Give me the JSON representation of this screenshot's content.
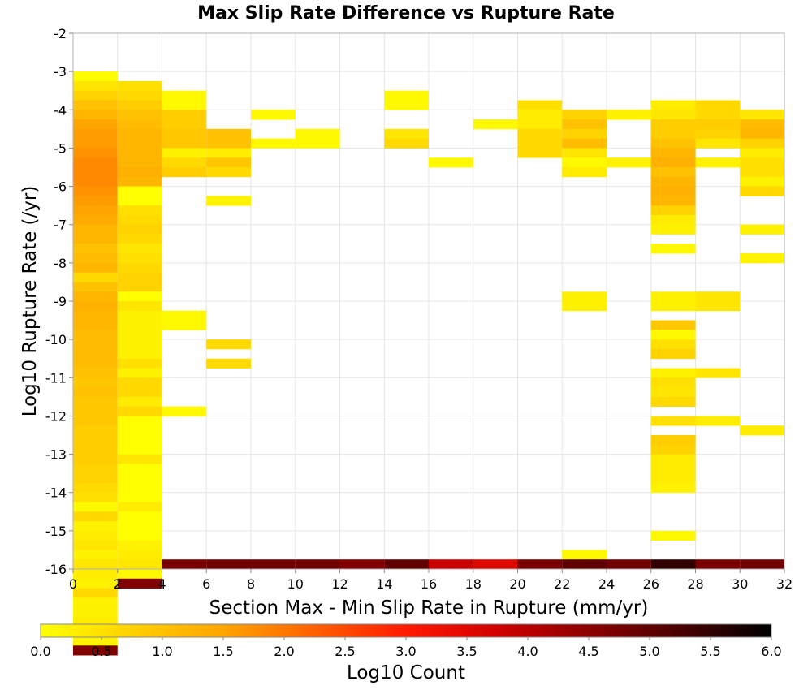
{
  "chart_data": {
    "type": "heatmap",
    "title": "Max Slip Rate Difference vs Rupture Rate",
    "xlabel": "Section Max - Min Slip Rate in Rupture (mm/yr)",
    "ylabel": "Log10 Rupture Rate (/yr)",
    "xlim": [
      0,
      32
    ],
    "ylim": [
      -16,
      -2
    ],
    "x_bin_width": 2,
    "y_bin_height": 0.25,
    "x_ticks": [
      "0",
      "2",
      "4",
      "6",
      "8",
      "10",
      "12",
      "14",
      "16",
      "18",
      "20",
      "22",
      "24",
      "26",
      "28",
      "30",
      "32"
    ],
    "y_ticks": [
      "-2",
      "-3",
      "-4",
      "-5",
      "-6",
      "-7",
      "-8",
      "-9",
      "-10",
      "-11",
      "-12",
      "-13",
      "-14",
      "-15",
      "-16"
    ],
    "grid": true,
    "colorbar": {
      "label": "Log10 Count",
      "range": [
        0,
        6
      ],
      "ticks": [
        "0.0",
        "0.5",
        "1.0",
        "1.5",
        "2.0",
        "2.5",
        "3.0",
        "3.5",
        "4.0",
        "4.5",
        "5.0",
        "5.5",
        "6.0"
      ],
      "stops": [
        "#ffff00",
        "#ffd000",
        "#ffa500",
        "#ff6000",
        "#ff1a00",
        "#d00000",
        "#8b0000",
        "#4a0000",
        "#000000"
      ]
    },
    "columns": [
      {
        "x": 1,
        "top": -3.0,
        "values": [
          0.05,
          0.4,
          0.7,
          1.0,
          1.2,
          1.5,
          1.6,
          1.6,
          1.7,
          1.8,
          1.8,
          1.8,
          1.7,
          1.6,
          1.5,
          1.4,
          1.2,
          1.2,
          1.0,
          1.1,
          1.2,
          0.6,
          1.0,
          1.2,
          1.3,
          1.2,
          1.2,
          1.1,
          1.1,
          1.1,
          1.1,
          1.0,
          0.9,
          1.0,
          0.9,
          0.9,
          0.9,
          0.8,
          0.8,
          0.8,
          0.8,
          0.7,
          0.7,
          0.6,
          0.5,
          0.1,
          0.6,
          0.2,
          0.3,
          0.4,
          0.2,
          0.4,
          0.3,
          0.2,
          0.6,
          0.2,
          0.2,
          0.3,
          0.1,
          0.2,
          4.6
        ]
      },
      {
        "x": 3,
        "top": -3.25,
        "values": [
          0.5,
          0.6,
          0.8,
          1.0,
          1.1,
          1.2,
          1.2,
          1.2,
          1.2,
          1.3,
          1.2,
          0.0,
          0.0,
          0.5,
          0.6,
          0.7,
          0.6,
          0.4,
          0.5,
          0.6,
          0.7,
          0.7,
          0.0,
          0.4,
          0.2,
          0.2,
          0.2,
          0.2,
          0.2,
          0.5,
          0.2,
          0.6,
          0.6,
          0.3,
          0.6,
          0.0,
          0.0,
          0.0,
          0.0,
          0.4,
          0.0,
          0.0,
          0.0,
          0.0,
          0.3,
          0.0,
          0.0,
          0.0,
          0.2,
          0.3,
          0.4,
          0.1,
          4.6
        ]
      },
      {
        "x": 5,
        "top": -3.5,
        "values": [
          0.1,
          0.1,
          0.8,
          0.8,
          0.9,
          0.9,
          0.2,
          0.6,
          0.8
        ]
      },
      {
        "x": 5,
        "top": -9.25,
        "values": [
          0.1,
          0.1
        ]
      },
      {
        "x": 5,
        "top": -11.75,
        "values": [
          0.1
        ]
      },
      {
        "x": 5,
        "top": -15.75,
        "values": [
          4.7
        ]
      },
      {
        "x": 7,
        "top": -4.5,
        "values": [
          1.0,
          1.0,
          0.3,
          0.9,
          0.6
        ]
      },
      {
        "x": 7,
        "top": -6.25,
        "values": [
          0.2
        ]
      },
      {
        "x": 7,
        "top": -10.0,
        "values": [
          0.6
        ]
      },
      {
        "x": 7,
        "top": -10.5,
        "values": [
          0.6
        ]
      },
      {
        "x": 7,
        "top": -15.75,
        "values": [
          4.8
        ]
      },
      {
        "x": 9,
        "top": -4.0,
        "values": [
          0.1
        ]
      },
      {
        "x": 9,
        "top": -4.75,
        "values": [
          0.1
        ]
      },
      {
        "x": 9,
        "top": -15.75,
        "values": [
          4.8
        ]
      },
      {
        "x": 11,
        "top": -4.5,
        "values": [
          0.1,
          0.1
        ]
      },
      {
        "x": 11,
        "top": -15.75,
        "values": [
          4.8
        ]
      },
      {
        "x": 13,
        "top": -15.75,
        "values": [
          4.6
        ]
      },
      {
        "x": 15,
        "top": -3.5,
        "values": [
          0.1,
          0.1
        ]
      },
      {
        "x": 15,
        "top": -4.5,
        "values": [
          0.4,
          0.6
        ]
      },
      {
        "x": 15,
        "top": -15.75,
        "values": [
          5.0
        ]
      },
      {
        "x": 17,
        "top": -5.25,
        "values": [
          0.1
        ]
      },
      {
        "x": 17,
        "top": -15.75,
        "values": [
          3.8
        ]
      },
      {
        "x": 19,
        "top": -4.25,
        "values": [
          0.1
        ]
      },
      {
        "x": 19,
        "top": -15.75,
        "values": [
          3.5
        ]
      },
      {
        "x": 21,
        "top": -3.75,
        "values": [
          0.5,
          0.3,
          0.3,
          0.6,
          0.6,
          0.6
        ]
      },
      {
        "x": 21,
        "top": -15.75,
        "values": [
          4.7
        ]
      },
      {
        "x": 23,
        "top": -4.0,
        "values": [
          0.7,
          1.0,
          0.7,
          1.1,
          0.4,
          0.1,
          0.3
        ]
      },
      {
        "x": 23,
        "top": -8.75,
        "values": [
          0.2,
          0.2
        ]
      },
      {
        "x": 23,
        "top": -15.5,
        "values": [
          0.1,
          5.0
        ]
      },
      {
        "x": 25,
        "top": -4.0,
        "values": [
          0.2
        ]
      },
      {
        "x": 25,
        "top": -5.25,
        "values": [
          0.2
        ]
      },
      {
        "x": 25,
        "top": -15.75,
        "values": [
          4.8
        ]
      },
      {
        "x": 27,
        "top": -3.75,
        "values": [
          0.3,
          0.4,
          0.8,
          0.8,
          1.0,
          1.2,
          1.3,
          1.0,
          1.2,
          1.3,
          1.2,
          0.7,
          0.3,
          0.2
        ]
      },
      {
        "x": 27,
        "top": -7.5,
        "values": [
          0.1
        ]
      },
      {
        "x": 27,
        "top": -8.75,
        "values": [
          0.2,
          0.2
        ]
      },
      {
        "x": 27,
        "top": -9.5,
        "values": [
          0.9,
          0.1,
          0.5,
          0.7
        ]
      },
      {
        "x": 27,
        "top": -10.75,
        "values": [
          0.2,
          0.5,
          0.4,
          0.6
        ]
      },
      {
        "x": 27,
        "top": -12.0,
        "values": [
          0.5
        ]
      },
      {
        "x": 27,
        "top": -12.5,
        "values": [
          0.8,
          0.7,
          0.3,
          0.3,
          0.3,
          0.2
        ]
      },
      {
        "x": 27,
        "top": -15.0,
        "values": [
          0.1
        ]
      },
      {
        "x": 27,
        "top": -15.75,
        "values": [
          5.5
        ]
      },
      {
        "x": 29,
        "top": -3.75,
        "values": [
          0.6,
          0.6,
          0.8,
          0.7,
          0.4
        ]
      },
      {
        "x": 29,
        "top": -5.25,
        "values": [
          0.2
        ]
      },
      {
        "x": 29,
        "top": -8.75,
        "values": [
          0.4,
          0.4
        ]
      },
      {
        "x": 29,
        "top": -10.75,
        "values": [
          0.4
        ]
      },
      {
        "x": 29,
        "top": -12.0,
        "values": [
          0.3
        ]
      },
      {
        "x": 29,
        "top": -15.75,
        "values": [
          4.7
        ]
      },
      {
        "x": 31,
        "top": -4.0,
        "values": [
          0.4,
          1.1,
          1.2,
          0.7,
          0.3,
          0.5,
          0.5,
          0.2,
          0.6
        ]
      },
      {
        "x": 31,
        "top": -7.0,
        "values": [
          0.2
        ]
      },
      {
        "x": 31,
        "top": -7.75,
        "values": [
          0.2
        ]
      },
      {
        "x": 31,
        "top": -12.25,
        "values": [
          0.3
        ]
      },
      {
        "x": 31,
        "top": -15.75,
        "values": [
          4.8
        ]
      }
    ]
  }
}
